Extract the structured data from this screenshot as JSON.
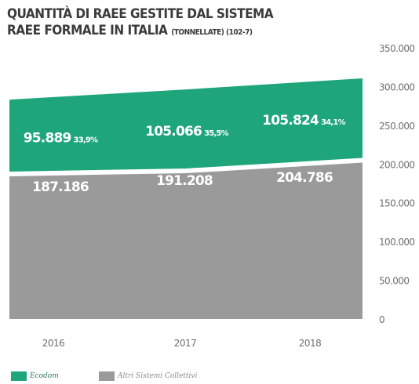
{
  "title": {
    "line1": "QUANTITÀ DI RAEE GESTITE DAL SISTEMA",
    "line2": "RAEE FORMALE IN ITALIA",
    "line2_small": "(TONNELLATE) (102-7)"
  },
  "colors": {
    "erion": "#1ea67a",
    "altri": "#9b9a9b",
    "label": "#ffffff",
    "axis_text": "#6f6f6f"
  },
  "chart_data": {
    "type": "area",
    "stacked": true,
    "x": [
      "2016",
      "2017",
      "2018"
    ],
    "ylim": [
      0,
      350000
    ],
    "yticks": [
      "0",
      "50.000",
      "100.000",
      "150.000",
      "200.000",
      "250.000",
      "300.000",
      "350.000"
    ],
    "ytick_values": [
      0,
      50000,
      100000,
      150000,
      200000,
      250000,
      300000,
      350000
    ],
    "series": [
      {
        "name": "Altri Sistemi Collettivi",
        "values": [
          187186,
          191208,
          204786
        ],
        "labels": [
          "187.186",
          "191.208",
          "204.786"
        ],
        "color": "#9b9a9b"
      },
      {
        "name": "Ecodom",
        "values": [
          95889,
          105066,
          105824
        ],
        "labels": [
          "95.889",
          "105.066",
          "105.824"
        ],
        "shares": [
          "33,9%",
          "35,5%",
          "34,1%"
        ],
        "color": "#1ea67a"
      }
    ],
    "legend_position": "bottom-left"
  },
  "legend": {
    "ecodom": "Ecodom",
    "altri": "Altri Sistemi Collettivi"
  }
}
